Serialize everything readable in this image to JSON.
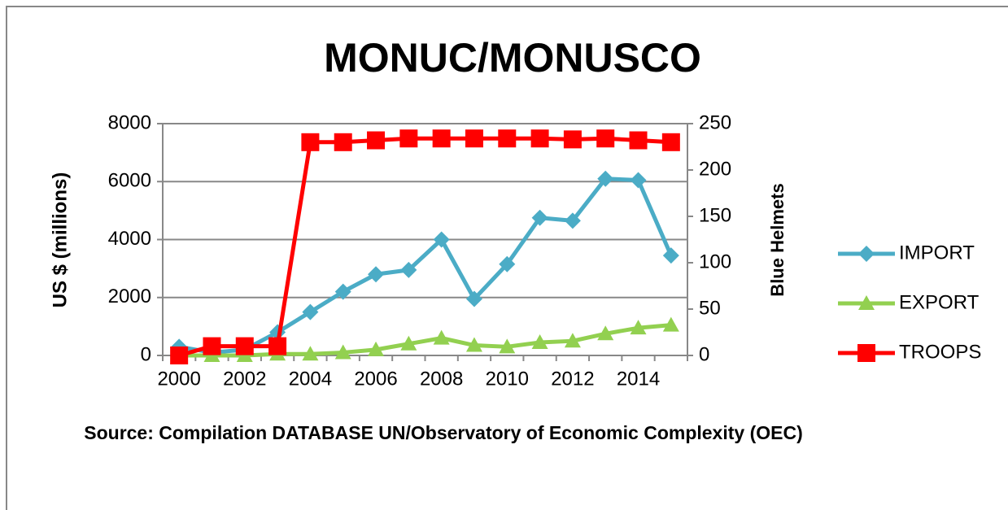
{
  "chart_data": {
    "type": "line",
    "title": "MONUC/MONUSCO",
    "y_label": "US $ (millions)",
    "y2_label": "Blue Helmets",
    "note": "Source: Compilation DATABASE UN/Observatory of Economic Complexity (OEC)",
    "categories": [
      "2000",
      null,
      "2002",
      null,
      "2004",
      null,
      "2006",
      null,
      "2008",
      null,
      "2010",
      null,
      "2012",
      null,
      "2014",
      null
    ],
    "ylim": [
      0,
      8000
    ],
    "yticks": [
      0,
      2000,
      4000,
      6000,
      8000
    ],
    "y2lim": [
      0,
      250
    ],
    "y2ticks": [
      0,
      50,
      100,
      150,
      200,
      250
    ],
    "grid": true,
    "legend": "right",
    "series": [
      {
        "name": "IMPORT",
        "color": "#4bacc6",
        "marker": "diamond",
        "values": [
          300,
          100,
          200,
          800,
          1500,
          2200,
          2800,
          2950,
          4000,
          1950,
          3150,
          4750,
          4650,
          6100,
          6050,
          3450
        ]
      },
      {
        "name": "EXPORT",
        "color": "#92d050",
        "marker": "triangle",
        "values": [
          0,
          0,
          0,
          50,
          50,
          100,
          200,
          400,
          600,
          350,
          300,
          450,
          500,
          750,
          950,
          1050
        ]
      },
      {
        "name": "TROOPS",
        "color": "#ff0000",
        "marker": "square",
        "axis": "y2",
        "values": [
          0,
          10,
          10,
          10,
          230,
          230,
          232,
          234,
          234,
          234,
          234,
          234,
          233,
          234,
          232,
          230
        ]
      }
    ]
  }
}
